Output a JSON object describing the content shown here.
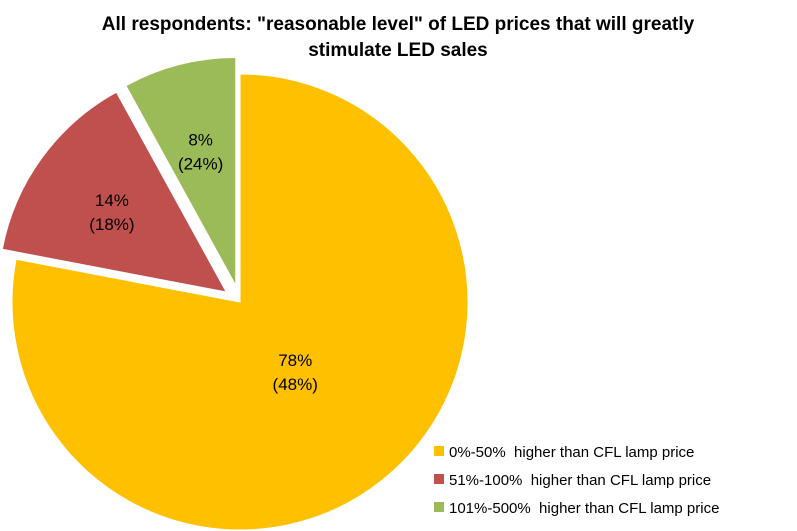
{
  "chart_data": {
    "type": "pie",
    "title_lines": [
      "All respondents: \"reasonable level\" of LED prices that will greatly",
      "stimulate LED sales"
    ],
    "slices": [
      {
        "legend": "0%-50%  higher than CFL lamp price",
        "value": 78,
        "label_main": "78%",
        "label_sub": "(48%)",
        "color": "#FFC000",
        "exploded": false
      },
      {
        "legend": "51%-100%  higher than CFL lamp price",
        "value": 14,
        "label_main": "14%",
        "label_sub": "(18%)",
        "color": "#C0504D",
        "exploded": true
      },
      {
        "legend": "101%-500%  higher than CFL lamp price",
        "value": 8,
        "label_main": "8%",
        "label_sub": "(24%)",
        "color": "#9BBB59",
        "exploded": true
      }
    ],
    "legend_position": "bottom-right"
  }
}
